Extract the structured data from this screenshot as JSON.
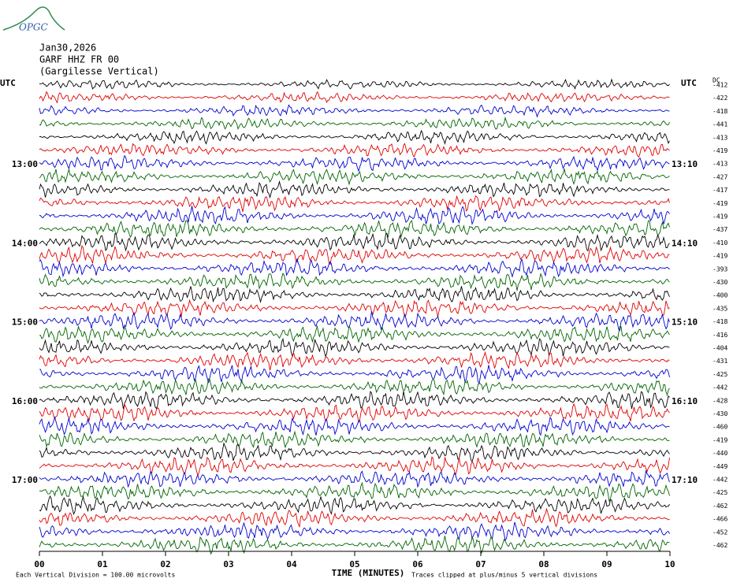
{
  "header": {
    "logo": "OPGC",
    "date": "Jan30,2026",
    "station": "GARF HHZ FR 00",
    "location": "(Gargilesse Vertical)"
  },
  "left_axis": {
    "title": "UTC",
    "labels": [
      "13:00",
      "14:00",
      "15:00",
      "16:00",
      "17:00"
    ]
  },
  "right_axis": {
    "title": "UTC",
    "labels": [
      "13:10",
      "14:10",
      "15:10",
      "16:10",
      "17:10"
    ]
  },
  "dc": {
    "title": "DC",
    "values": [
      -412,
      -422,
      -418,
      -441,
      -413,
      -419,
      -413,
      -427,
      -417,
      -419,
      -419,
      -437,
      -410,
      -419,
      -393,
      -430,
      -400,
      -435,
      -418,
      -416,
      -404,
      -431,
      -425,
      -442,
      -428,
      -430,
      -460,
      -419,
      -440,
      -449,
      -442,
      -425,
      -462,
      -466,
      -452,
      -462
    ]
  },
  "x_axis": {
    "title": "TIME (MINUTES)",
    "ticks": [
      "00",
      "01",
      "02",
      "03",
      "04",
      "05",
      "06",
      "07",
      "08",
      "09",
      "10"
    ]
  },
  "footer": {
    "division": "Each Vertical Division =  100.00 microvolts",
    "clipping": "Traces clipped at plus/minus 5 vertical divisions"
  }
}
